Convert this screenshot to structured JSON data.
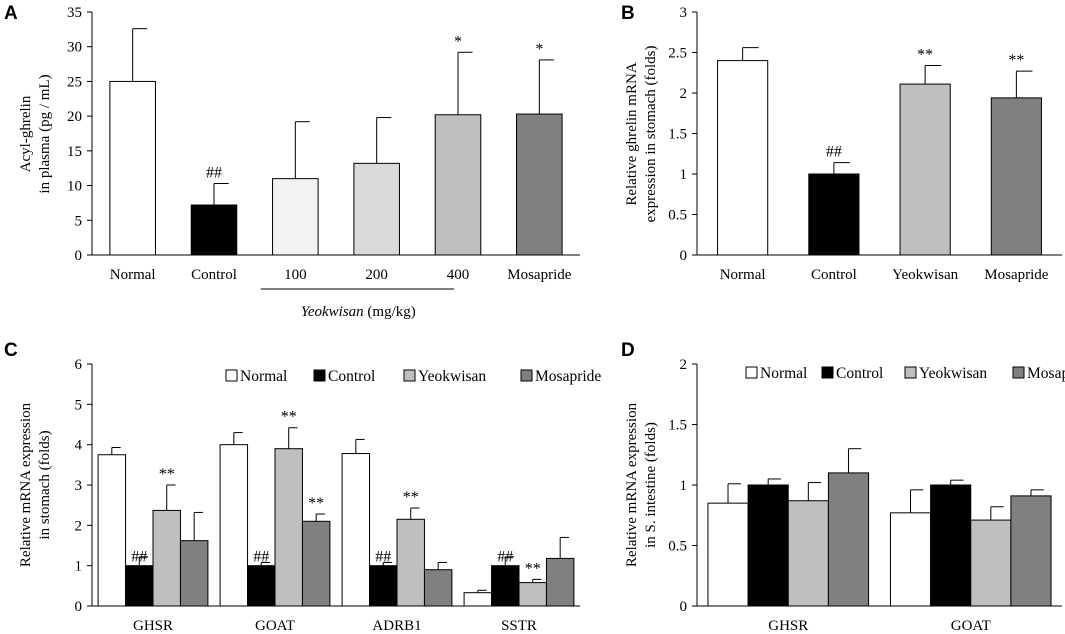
{
  "chart_data": [
    {
      "panel": "A",
      "type": "bar",
      "ylabel_lines": [
        "Acyl-ghrelin",
        "in plasma (pg / mL)"
      ],
      "ylim": [
        0,
        35
      ],
      "yticks": [
        0,
        5,
        10,
        15,
        20,
        25,
        30,
        35
      ],
      "categories": [
        "Normal",
        "Control",
        "100",
        "200",
        "400",
        "Mosapride"
      ],
      "values": [
        25.0,
        7.2,
        11.0,
        13.2,
        20.2,
        20.3
      ],
      "errors": [
        7.6,
        3.1,
        8.2,
        6.6,
        9.0,
        7.8
      ],
      "colors": [
        "#ffffff",
        "#000000",
        "#f2f2f2",
        "#d9d9d9",
        "#bfbfbf",
        "#808080"
      ],
      "annotations": [
        "",
        "##",
        "",
        "",
        "*",
        "*"
      ],
      "group_label_italic": "Yeokwisan",
      "group_label_rest": " (mg/kg)"
    },
    {
      "panel": "B",
      "type": "bar",
      "ylabel_lines": [
        "Relative ghrelin mRNA",
        "expression in stomach (folds)"
      ],
      "ylim": [
        0,
        3
      ],
      "yticks": [
        0,
        0.5,
        1,
        1.5,
        2,
        2.5,
        3
      ],
      "categories": [
        "Normal",
        "Control",
        "Yeokwisan",
        "Mosapride"
      ],
      "values": [
        2.4,
        1.0,
        2.11,
        1.94
      ],
      "errors": [
        0.16,
        0.14,
        0.23,
        0.33
      ],
      "colors": [
        "#ffffff",
        "#000000",
        "#bfbfbf",
        "#808080"
      ],
      "annotations": [
        "",
        "##",
        "**",
        "**"
      ]
    },
    {
      "panel": "C",
      "type": "bar",
      "ylabel_lines": [
        "Relative mRNA expression",
        "in stomach (folds)"
      ],
      "ylim": [
        0,
        6
      ],
      "yticks": [
        0,
        1,
        2,
        3,
        4,
        5,
        6
      ],
      "categories": [
        "GHSR",
        "GOAT",
        "ADRB1",
        "SSTR"
      ],
      "legend": [
        "Normal",
        "Control",
        "Yeokwisan",
        "Mosapride"
      ],
      "series": [
        {
          "name": "Normal",
          "color": "#ffffff",
          "values": [
            3.75,
            4.0,
            3.78,
            0.33
          ],
          "errors": [
            0.18,
            0.3,
            0.35,
            0.06
          ],
          "annotations": [
            "",
            "",
            "",
            ""
          ]
        },
        {
          "name": "Control",
          "color": "#000000",
          "values": [
            1.0,
            1.0,
            1.0,
            1.0
          ],
          "errors": [
            0.22,
            0.08,
            0.08,
            0.22
          ],
          "annotations": [
            "##",
            "##",
            "##",
            "##"
          ]
        },
        {
          "name": "Yeokwisan",
          "color": "#bfbfbf",
          "values": [
            2.37,
            3.9,
            2.15,
            0.58
          ],
          "errors": [
            0.63,
            0.52,
            0.28,
            0.08
          ],
          "annotations": [
            "**",
            "**",
            "**",
            "**"
          ]
        },
        {
          "name": "Mosapride",
          "color": "#808080",
          "values": [
            1.62,
            2.1,
            0.9,
            1.18
          ],
          "errors": [
            0.7,
            0.18,
            0.18,
            0.52
          ],
          "annotations": [
            "",
            "**",
            "",
            ""
          ]
        }
      ]
    },
    {
      "panel": "D",
      "type": "bar",
      "ylabel_lines": [
        "Relative mRNA expression",
        "in S. intestine (folds)"
      ],
      "ylim": [
        0,
        2
      ],
      "yticks": [
        0,
        0.5,
        1,
        1.5,
        2
      ],
      "categories": [
        "GHSR",
        "GOAT"
      ],
      "legend": [
        "Normal",
        "Control",
        "Yeokwisan",
        "Mosapride"
      ],
      "series": [
        {
          "name": "Normal",
          "color": "#ffffff",
          "values": [
            0.85,
            0.77
          ],
          "errors": [
            0.16,
            0.19
          ]
        },
        {
          "name": "Control",
          "color": "#000000",
          "values": [
            1.0,
            1.0
          ],
          "errors": [
            0.05,
            0.04
          ]
        },
        {
          "name": "Yeokwisan",
          "color": "#bfbfbf",
          "values": [
            0.87,
            0.71
          ],
          "errors": [
            0.15,
            0.11
          ]
        },
        {
          "name": "Mosapride",
          "color": "#808080",
          "values": [
            1.1,
            0.91
          ],
          "errors": [
            0.2,
            0.05
          ]
        }
      ]
    }
  ]
}
